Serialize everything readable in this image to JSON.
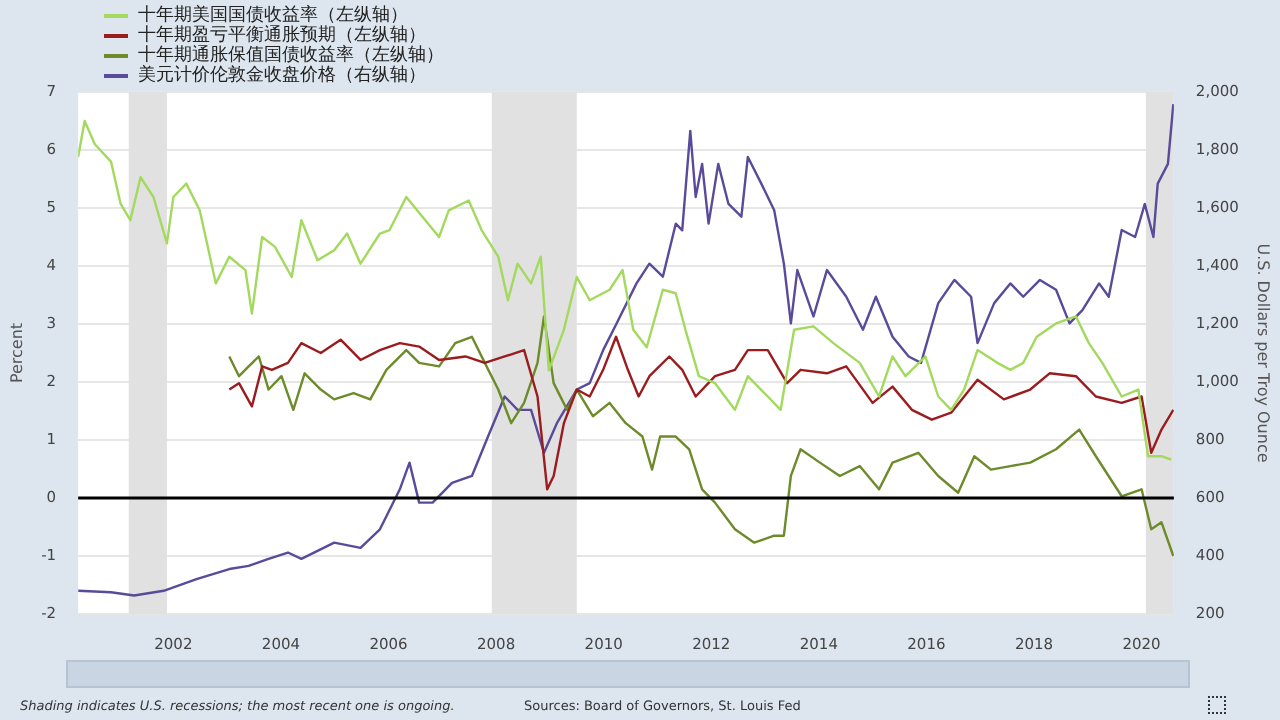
{
  "chart_data": {
    "type": "line",
    "ylabel": "Percent",
    "y2label": "U.S. Dollars per Troy Ounce",
    "annotations": [
      "Shading indicates U.S. recessions; the most recent one is ongoing.",
      "Sources: Board of Governors, St. Louis Fed"
    ],
    "xlim": [
      2000.23,
      2020.6
    ],
    "xticks": [
      2002,
      2004,
      2006,
      2008,
      2010,
      2012,
      2014,
      2016,
      2018,
      2020
    ],
    "ylim": [
      -2,
      7
    ],
    "yticks": [
      -2,
      -1,
      0,
      1,
      2,
      3,
      4,
      5,
      6,
      7
    ],
    "y2lim": [
      200,
      2000
    ],
    "y2ticks": [
      200,
      400,
      600,
      800,
      {
        "value": 1000,
        "label": "1,000"
      },
      {
        "value": 1200,
        "label": "1,200"
      },
      {
        "value": 1400,
        "label": "1,400"
      },
      {
        "value": 1600,
        "label": "1,600"
      },
      {
        "value": 1800,
        "label": "1,800"
      },
      {
        "value": 2000,
        "label": "2,000"
      }
    ],
    "grid": "y",
    "legend": "top left",
    "marker": "none",
    "line_style": "solid",
    "ref_lines": [
      {
        "axis": "y",
        "value": 0,
        "color": "#000000"
      }
    ],
    "bands": [
      {
        "axis": "x",
        "from": 2001.17,
        "to": 2001.88,
        "color": "#e1e1e1"
      },
      {
        "axis": "x",
        "from": 2007.92,
        "to": 2009.5,
        "color": "#e1e1e1"
      },
      {
        "axis": "x",
        "from": 2020.08,
        "to": 2020.6,
        "color": "#e1e1e1"
      }
    ],
    "series": [
      {
        "name": "十年期美国国债收益率（左纵轴）",
        "color": "#a3d95e",
        "x": [
          2000.23,
          2000.35,
          2000.54,
          2000.84,
          2001.02,
          2001.2,
          2001.39,
          2001.63,
          2001.88,
          2002,
          2002.24,
          2002.49,
          2002.79,
          2003.04,
          2003.34,
          2003.46,
          2003.65,
          2003.89,
          2004.2,
          2004.38,
          2004.68,
          2004.99,
          2005.23,
          2005.48,
          2005.84,
          2006.02,
          2006.33,
          2006.63,
          2006.94,
          2007.12,
          2007.49,
          2007.73,
          2008.04,
          2008.22,
          2008.4,
          2008.65,
          2008.83,
          2008.98,
          2009.26,
          2009.5,
          2009.74,
          2010.11,
          2010.35,
          2010.55,
          2010.8,
          2011.1,
          2011.34,
          2011.52,
          2011.77,
          2012.07,
          2012.44,
          2012.68,
          2013.05,
          2013.29,
          2013.54,
          2013.9,
          2014.27,
          2014.76,
          2015.12,
          2015.37,
          2015.61,
          2015.98,
          2016.22,
          2016.46,
          2016.7,
          2016.95,
          2017.32,
          2017.56,
          2017.8,
          2018.05,
          2018.41,
          2018.78,
          2019.02,
          2019.27,
          2019.63,
          2019.94,
          2020.12,
          2020.37,
          2020.55
        ],
        "values": [
          5.88,
          6.5,
          6.1,
          5.8,
          5.07,
          4.79,
          5.53,
          5.19,
          4.39,
          5.19,
          5.42,
          4.96,
          3.7,
          4.16,
          3.93,
          3.18,
          4.5,
          4.33,
          3.81,
          4.79,
          4.1,
          4.27,
          4.56,
          4.04,
          4.56,
          4.62,
          5.19,
          4.85,
          4.5,
          4.96,
          5.13,
          4.62,
          4.16,
          3.41,
          4.04,
          3.7,
          4.16,
          2.2,
          2.9,
          3.81,
          3.41,
          3.59,
          3.93,
          2.9,
          2.6,
          3.59,
          3.53,
          2.9,
          2.1,
          1.98,
          1.52,
          2.1,
          1.75,
          1.52,
          2.9,
          2.96,
          2.67,
          2.33,
          1.75,
          2.44,
          2.1,
          2.44,
          1.75,
          1.52,
          1.87,
          2.55,
          2.33,
          2.21,
          2.33,
          2.78,
          3.01,
          3.13,
          2.67,
          2.33,
          1.75,
          1.87,
          0.72,
          0.72,
          0.66
        ]
      },
      {
        "name": "十年期盈亏平衡通胀预期（左纵轴）",
        "color": "#9b1c1f",
        "x": [
          2003.04,
          2003.22,
          2003.46,
          2003.65,
          2003.83,
          2004.13,
          2004.38,
          2004.74,
          2005.11,
          2005.48,
          2005.84,
          2006.21,
          2006.57,
          2006.94,
          2007.43,
          2007.79,
          2008.16,
          2008.52,
          2008.77,
          2008.95,
          2009.07,
          2009.26,
          2009.5,
          2009.74,
          2009.99,
          2010.23,
          2010.45,
          2010.65,
          2010.85,
          2011.22,
          2011.46,
          2011.71,
          2012.07,
          2012.44,
          2012.68,
          2013.05,
          2013.41,
          2013.66,
          2014.15,
          2014.51,
          2015,
          2015.37,
          2015.73,
          2016.1,
          2016.46,
          2016.95,
          2017.44,
          2017.93,
          2018.29,
          2018.78,
          2019.15,
          2019.63,
          2020,
          2020.18,
          2020.37,
          2020.59
        ],
        "values": [
          1.87,
          1.98,
          1.58,
          2.27,
          2.21,
          2.33,
          2.67,
          2.5,
          2.73,
          2.38,
          2.55,
          2.67,
          2.61,
          2.38,
          2.44,
          2.33,
          2.44,
          2.55,
          1.75,
          0.15,
          0.38,
          1.29,
          1.87,
          1.75,
          2.21,
          2.78,
          2.21,
          1.75,
          2.1,
          2.44,
          2.21,
          1.75,
          2.1,
          2.21,
          2.55,
          2.55,
          1.98,
          2.21,
          2.15,
          2.27,
          1.64,
          1.92,
          1.52,
          1.35,
          1.47,
          2.04,
          1.7,
          1.87,
          2.15,
          2.1,
          1.75,
          1.64,
          1.75,
          0.78,
          1.18,
          1.52
        ]
      },
      {
        "name": "十年期通胀保值国债收益率（左纵轴）",
        "color": "#6d8b2a",
        "x": [
          2003.04,
          2003.22,
          2003.4,
          2003.59,
          2003.77,
          2004.01,
          2004.23,
          2004.44,
          2004.74,
          2004.99,
          2005.35,
          2005.66,
          2005.96,
          2006.33,
          2006.57,
          2006.94,
          2007.24,
          2007.55,
          2007.79,
          2008.04,
          2008.28,
          2008.52,
          2008.77,
          2008.89,
          2009.07,
          2009.32,
          2009.5,
          2009.8,
          2010.11,
          2010.41,
          2010.72,
          2010.9,
          2011.05,
          2011.34,
          2011.59,
          2011.83,
          2012.07,
          2012.44,
          2012.8,
          2013.17,
          2013.35,
          2013.48,
          2013.66,
          2014.02,
          2014.39,
          2014.76,
          2015.12,
          2015.37,
          2015.85,
          2016.22,
          2016.59,
          2016.89,
          2017.2,
          2017.56,
          2017.93,
          2018.41,
          2018.84,
          2019.15,
          2019.63,
          2020,
          2020.18,
          2020.37,
          2020.59
        ],
        "values": [
          2.44,
          2.1,
          2.27,
          2.44,
          1.87,
          2.1,
          1.52,
          2.15,
          1.87,
          1.7,
          1.81,
          1.7,
          2.21,
          2.55,
          2.33,
          2.27,
          2.67,
          2.78,
          2.33,
          1.87,
          1.29,
          1.64,
          2.33,
          3.13,
          1.98,
          1.52,
          1.87,
          1.41,
          1.64,
          1.29,
          1.06,
          0.49,
          1.06,
          1.06,
          0.84,
          0.15,
          -0.08,
          -0.54,
          -0.77,
          -0.65,
          -0.65,
          0.38,
          0.84,
          0.61,
          0.38,
          0.55,
          0.15,
          0.61,
          0.78,
          0.38,
          0.09,
          0.72,
          0.49,
          0.55,
          0.61,
          0.84,
          1.18,
          0.72,
          0.03,
          0.15,
          -0.54,
          -0.42,
          -1.0
        ]
      },
      {
        "name": "美元计价伦敦金收盘价格（右纵轴）",
        "color": "#5a4a9a",
        "axis": "y2",
        "x": [
          2000.23,
          2000.84,
          2001.27,
          2001.82,
          2002.43,
          2003.04,
          2003.4,
          2003.77,
          2004.13,
          2004.38,
          2004.99,
          2005.48,
          2005.84,
          2006.21,
          2006.39,
          2006.57,
          2006.82,
          2007.18,
          2007.55,
          2007.85,
          2008.16,
          2008.4,
          2008.65,
          2008.89,
          2009.13,
          2009.5,
          2009.74,
          2009.99,
          2010.24,
          2010.61,
          2010.85,
          2011.1,
          2011.34,
          2011.46,
          2011.61,
          2011.71,
          2011.83,
          2011.95,
          2012.13,
          2012.32,
          2012.56,
          2012.68,
          2012.93,
          2013.17,
          2013.35,
          2013.48,
          2013.6,
          2013.9,
          2014.15,
          2014.51,
          2014.82,
          2015.06,
          2015.37,
          2015.67,
          2015.9,
          2016.22,
          2016.52,
          2016.83,
          2016.95,
          2017.26,
          2017.56,
          2017.8,
          2018.11,
          2018.41,
          2018.66,
          2018.9,
          2019.21,
          2019.39,
          2019.63,
          2019.88,
          2020.06,
          2020.22,
          2020.3,
          2020.49,
          2020.59
        ],
        "values": [
          280,
          275,
          264,
          280,
          320,
          355,
          366,
          390,
          412,
          390,
          446,
          428,
          492,
          630,
          722,
          584,
          584,
          652,
          676,
          812,
          950,
          904,
          904,
          756,
          858,
          974,
          996,
          1110,
          1202,
          1340,
          1408,
          1363,
          1546,
          1523,
          1866,
          1638,
          1752,
          1546,
          1752,
          1614,
          1570,
          1776,
          1684,
          1592,
          1408,
          1202,
          1386,
          1226,
          1386,
          1294,
          1180,
          1294,
          1156,
          1088,
          1066,
          1272,
          1352,
          1294,
          1134,
          1272,
          1340,
          1294,
          1352,
          1318,
          1202,
          1248,
          1340,
          1294,
          1524,
          1500,
          1614,
          1500,
          1684,
          1752,
          1958
        ]
      }
    ]
  }
}
